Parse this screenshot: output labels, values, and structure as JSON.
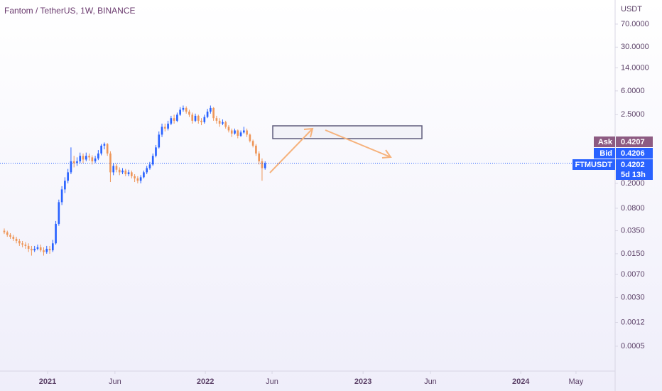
{
  "chart_data": {
    "type": "candlestick",
    "title": "Fantom / TetherUS, 1W, BINANCE",
    "y_axis_label": "USDT",
    "log_scale": true,
    "up_color": "#2962ff",
    "down_color": "#ee9659",
    "open": [
      0.035,
      0.033,
      0.03,
      0.028,
      0.026,
      0.024,
      0.022,
      0.021,
      0.02,
      0.018,
      0.017,
      0.018,
      0.019,
      0.017,
      0.016,
      0.018,
      0.017,
      0.022,
      0.045,
      0.1,
      0.16,
      0.22,
      0.3,
      0.45,
      0.42,
      0.45,
      0.55,
      0.48,
      0.55,
      0.52,
      0.45,
      0.5,
      0.6,
      0.8,
      0.85,
      0.6,
      0.3,
      0.38,
      0.33,
      0.3,
      0.32,
      0.28,
      0.3,
      0.26,
      0.24,
      0.22,
      0.25,
      0.3,
      0.35,
      0.4,
      0.55,
      0.75,
      1.2,
      1.6,
      1.5,
      1.8,
      2.2,
      2.0,
      2.5,
      3.0,
      3.2,
      2.8,
      2.5,
      2.0,
      2.4,
      2.0,
      1.9,
      2.3,
      2.8,
      3.2,
      2.2,
      2.0,
      1.8,
      1.9,
      1.6,
      1.4,
      1.25,
      1.4,
      1.15,
      1.3,
      1.4,
      1.2,
      0.95,
      0.8,
      0.6,
      0.45,
      0.35
    ],
    "high": [
      0.038,
      0.035,
      0.032,
      0.03,
      0.028,
      0.026,
      0.024,
      0.023,
      0.022,
      0.02,
      0.02,
      0.021,
      0.021,
      0.019,
      0.02,
      0.02,
      0.025,
      0.05,
      0.11,
      0.18,
      0.25,
      0.34,
      0.75,
      0.55,
      0.52,
      0.62,
      0.6,
      0.62,
      0.6,
      0.56,
      0.55,
      0.68,
      0.85,
      0.9,
      0.88,
      0.65,
      0.42,
      0.41,
      0.36,
      0.35,
      0.34,
      0.33,
      0.32,
      0.28,
      0.26,
      0.27,
      0.32,
      0.38,
      0.44,
      0.6,
      0.82,
      1.35,
      1.8,
      1.8,
      2.0,
      2.4,
      2.5,
      2.7,
      3.3,
      3.5,
      3.4,
      3.0,
      2.7,
      2.6,
      2.5,
      2.2,
      2.5,
      3.1,
      3.5,
      3.3,
      2.4,
      2.2,
      2.1,
      2.0,
      1.7,
      1.5,
      1.5,
      1.45,
      1.4,
      1.6,
      1.5,
      1.25,
      1.0,
      0.85,
      0.65,
      0.5,
      0.45
    ],
    "low": [
      0.031,
      0.028,
      0.026,
      0.024,
      0.022,
      0.02,
      0.019,
      0.018,
      0.016,
      0.014,
      0.016,
      0.017,
      0.016,
      0.014,
      0.015,
      0.015,
      0.016,
      0.021,
      0.042,
      0.09,
      0.14,
      0.2,
      0.28,
      0.36,
      0.38,
      0.42,
      0.42,
      0.45,
      0.46,
      0.4,
      0.42,
      0.47,
      0.56,
      0.7,
      0.55,
      0.21,
      0.27,
      0.3,
      0.27,
      0.28,
      0.26,
      0.26,
      0.24,
      0.21,
      0.2,
      0.2,
      0.24,
      0.28,
      0.33,
      0.38,
      0.52,
      0.72,
      1.1,
      1.35,
      1.4,
      1.7,
      1.8,
      1.9,
      2.4,
      2.8,
      2.6,
      2.3,
      1.8,
      1.9,
      1.8,
      1.7,
      1.8,
      2.2,
      2.6,
      2.0,
      1.8,
      1.6,
      1.7,
      1.5,
      1.3,
      1.1,
      1.2,
      1.05,
      1.1,
      1.25,
      1.1,
      0.9,
      0.75,
      0.55,
      0.4,
      0.22,
      0.33
    ],
    "close": [
      0.033,
      0.03,
      0.028,
      0.026,
      0.024,
      0.022,
      0.021,
      0.02,
      0.018,
      0.017,
      0.018,
      0.019,
      0.017,
      0.016,
      0.018,
      0.017,
      0.022,
      0.045,
      0.1,
      0.16,
      0.22,
      0.3,
      0.45,
      0.42,
      0.45,
      0.55,
      0.48,
      0.55,
      0.52,
      0.45,
      0.5,
      0.6,
      0.8,
      0.85,
      0.6,
      0.3,
      0.38,
      0.33,
      0.3,
      0.32,
      0.28,
      0.3,
      0.26,
      0.24,
      0.22,
      0.25,
      0.3,
      0.35,
      0.4,
      0.55,
      0.75,
      1.2,
      1.6,
      1.5,
      1.8,
      2.2,
      2.0,
      2.5,
      3.0,
      3.2,
      2.8,
      2.5,
      2.0,
      2.4,
      2.0,
      1.9,
      2.3,
      2.8,
      3.2,
      2.2,
      2.0,
      1.8,
      1.9,
      1.6,
      1.4,
      1.25,
      1.4,
      1.15,
      1.3,
      1.4,
      1.2,
      0.95,
      0.8,
      0.6,
      0.45,
      0.35,
      0.4202
    ],
    "xlim": [
      -1.4,
      201.4
    ],
    "xticks": [
      {
        "value": 14.3,
        "label": "2021"
      },
      {
        "value": 36.5,
        "label": "Jun"
      },
      {
        "value": 66.3,
        "label": "2022"
      },
      {
        "value": 88.3,
        "label": "Jun"
      },
      {
        "value": 118.3,
        "label": "2023"
      },
      {
        "value": 140.5,
        "label": "Jun"
      },
      {
        "value": 170.3,
        "label": "2024"
      },
      {
        "value": 188.5,
        "label": "May"
      }
    ],
    "ylim": [
      0.0002,
      170
    ],
    "yticks": [
      {
        "value": 70,
        "label": "70.0000"
      },
      {
        "value": 30,
        "label": "30.0000"
      },
      {
        "value": 14,
        "label": "14.0000"
      },
      {
        "value": 6,
        "label": "6.0000"
      },
      {
        "value": 2.5,
        "label": "2.5000"
      },
      {
        "value": 0.2,
        "label": "0.2000"
      },
      {
        "value": 0.08,
        "label": "0.0800"
      },
      {
        "value": 0.035,
        "label": "0.0350"
      },
      {
        "value": 0.015,
        "label": "0.0150"
      },
      {
        "value": 0.007,
        "label": "0.0070"
      },
      {
        "value": 0.003,
        "label": "0.0030"
      },
      {
        "value": 0.0012,
        "label": "0.0012"
      },
      {
        "value": 0.0005,
        "label": "0.0005"
      }
    ],
    "ask": {
      "label": "Ask",
      "value": 0.4207,
      "color": "#8d5b82"
    },
    "bid": {
      "label": "Bid",
      "value": 0.4206,
      "color": "#2962ff"
    },
    "last": {
      "symbol": "FTMUSDT",
      "value": 0.4202,
      "countdown": "5d 13h",
      "color": "#2962ff"
    }
  }
}
